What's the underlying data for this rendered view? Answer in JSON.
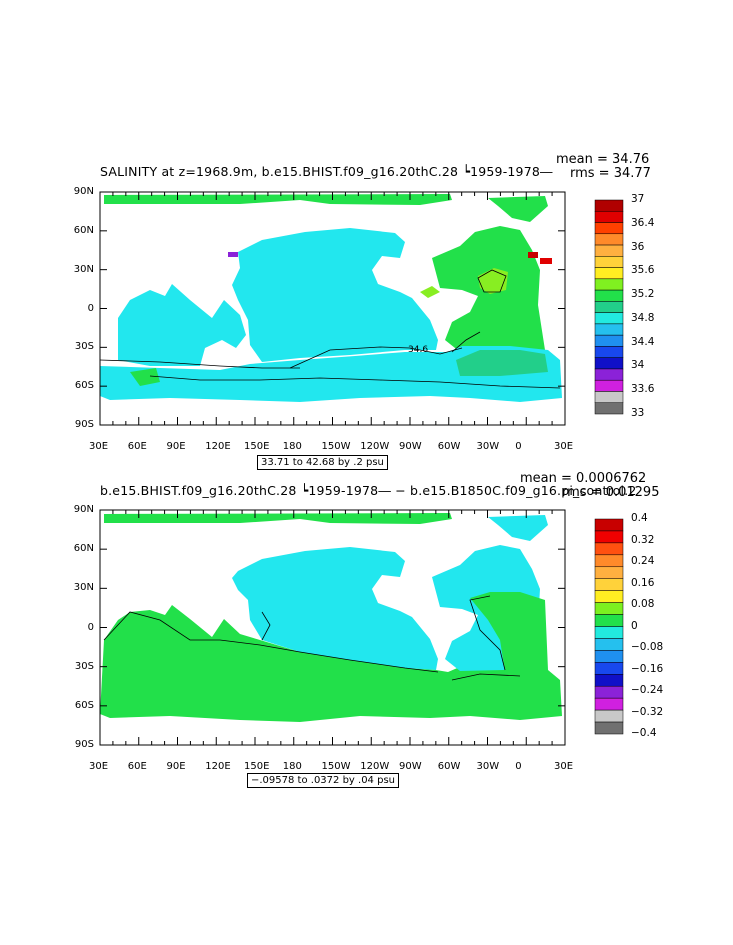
{
  "colors": {
    "ocean_blank": "#ffffff",
    "land": "#ffffff",
    "green": "#22e04a",
    "cyan": "#22e7ee",
    "cyan_light": "#33e6f0",
    "contour": "#000000"
  },
  "panel1": {
    "title": "SALINITY at z=1968.9m, b.e15.BHIST.f09_g16.20thC.28 ┕1959-1978―",
    "mean_label": "mean = 34.76",
    "rms_label": "rms = 34.77",
    "range_note": "33.71 to 42.68 by .2 psu",
    "contour_label": "34.6",
    "y_ticks": [
      "90N",
      "60N",
      "30N",
      "0",
      "30S",
      "60S",
      "90S"
    ],
    "x_ticks": [
      "30E",
      "60E",
      "90E",
      "120E",
      "150E",
      "180",
      "150W",
      "120W",
      "90W",
      "60W",
      "30W",
      "0",
      "30E"
    ],
    "colorbar": {
      "labels": [
        "37",
        "36.4",
        "36",
        "35.6",
        "35.2",
        "34.8",
        "34.4",
        "34",
        "33.6",
        "33"
      ],
      "colors": [
        "#b00000",
        "#e00000",
        "#ff4000",
        "#ff8a2a",
        "#ffb040",
        "#ffd23a",
        "#ffee22",
        "#80f020",
        "#22e04a",
        "#22cf8a",
        "#22eadf",
        "#25c0ee",
        "#1f90f0",
        "#1848ee",
        "#1010c8",
        "#8b22d8",
        "#d020e0",
        "#c8c8c8",
        "#707070"
      ]
    }
  },
  "panel2": {
    "title": "b.e15.BHIST.f09_g16.20thC.28 ┕1959-1978― − b.e15.B1850C.f09_g16.pi_control.2",
    "mean_label": "mean = 0.0006762",
    "rms_label": "rms = 0.01295",
    "range_note": "−.09578 to .0372 by .04 psu",
    "y_ticks": [
      "90N",
      "60N",
      "30N",
      "0",
      "30S",
      "60S",
      "90S"
    ],
    "x_ticks": [
      "30E",
      "60E",
      "90E",
      "120E",
      "150E",
      "180",
      "150W",
      "120W",
      "90W",
      "60W",
      "30W",
      "0",
      "30E"
    ],
    "colorbar": {
      "labels": [
        "0.4",
        "0.32",
        "0.24",
        "0.16",
        "0.08",
        "0",
        "−0.08",
        "−0.16",
        "−0.24",
        "−0.32",
        "−0.4"
      ],
      "colors": [
        "#c80000",
        "#f00000",
        "#ff5010",
        "#ff8a2a",
        "#ffb040",
        "#ffd23a",
        "#ffee22",
        "#7cf020",
        "#22e04a",
        "#22eadf",
        "#25c0ee",
        "#1f90f0",
        "#1848ee",
        "#1010c8",
        "#8b22d8",
        "#d020e0",
        "#c8c8c8",
        "#707070"
      ]
    }
  }
}
